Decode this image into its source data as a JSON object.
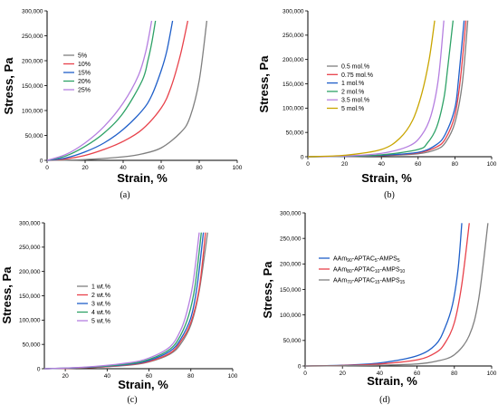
{
  "chart_data": [
    {
      "type": "line",
      "panel_label": "(a)",
      "xlabel": "Strain, %",
      "ylabel": "Stress, Pa",
      "xlim": [
        0,
        100
      ],
      "ylim": [
        0,
        300000
      ],
      "xticks": [
        0,
        20,
        40,
        60,
        80,
        100
      ],
      "yticks": [
        0,
        50000,
        100000,
        150000,
        200000,
        250000,
        300000
      ],
      "ytick_labels": [
        "0",
        "50,000",
        "100,000",
        "150,000",
        "200,000",
        "250,000",
        "300,000"
      ],
      "legend": "top-left",
      "series": [
        {
          "name": "5%",
          "color": "#7f7f7f",
          "x": [
            0,
            20,
            40,
            50,
            60,
            70,
            75,
            80,
            84
          ],
          "y": [
            0,
            1500,
            7000,
            13000,
            25000,
            55000,
            85000,
            160000,
            280000
          ]
        },
        {
          "name": "10%",
          "color": "#e8414a",
          "x": [
            0,
            10,
            20,
            30,
            40,
            50,
            60,
            65,
            70,
            74
          ],
          "y": [
            0,
            3000,
            10000,
            22000,
            38000,
            62000,
            105000,
            145000,
            210000,
            280000
          ]
        },
        {
          "name": "15%",
          "color": "#1f5fc9",
          "x": [
            0,
            10,
            20,
            30,
            40,
            50,
            55,
            60,
            63,
            66
          ],
          "y": [
            0,
            5000,
            17000,
            35000,
            62000,
            100000,
            130000,
            180000,
            220000,
            280000
          ]
        },
        {
          "name": "20%",
          "color": "#2ea267",
          "x": [
            0,
            10,
            20,
            30,
            40,
            50,
            53,
            55,
            57
          ],
          "y": [
            0,
            9000,
            28000,
            55000,
            95000,
            160000,
            200000,
            235000,
            280000
          ]
        },
        {
          "name": "25%",
          "color": "#b57fe0",
          "x": [
            0,
            10,
            20,
            30,
            40,
            48,
            52,
            55
          ],
          "y": [
            0,
            12000,
            35000,
            68000,
            115000,
            170000,
            220000,
            280000
          ]
        }
      ]
    },
    {
      "type": "line",
      "panel_label": "(b)",
      "xlabel": "Strain, %",
      "ylabel": "Stress, Pa",
      "xlim": [
        0,
        100
      ],
      "ylim": [
        0,
        300000
      ],
      "xticks": [
        0,
        20,
        40,
        60,
        80,
        100
      ],
      "yticks": [
        0,
        50000,
        100000,
        150000,
        200000,
        250000,
        300000
      ],
      "ytick_labels": [
        "0",
        "50,000",
        "100,000",
        "150,000",
        "200,000",
        "250,000",
        "300,000"
      ],
      "legend": "middle-left",
      "series": [
        {
          "name": "0.5 mol.%",
          "color": "#7f7f7f",
          "x": [
            0,
            20,
            40,
            60,
            70,
            75,
            80,
            84,
            87
          ],
          "y": [
            0,
            500,
            2000,
            6000,
            15000,
            30000,
            70000,
            150000,
            280000
          ]
        },
        {
          "name": "0.75 mol.%",
          "color": "#e8414a",
          "x": [
            0,
            20,
            40,
            60,
            70,
            75,
            80,
            83,
            86
          ],
          "y": [
            0,
            600,
            2500,
            8000,
            20000,
            38000,
            85000,
            160000,
            280000
          ]
        },
        {
          "name": "1 mol.%",
          "color": "#1f5fc9",
          "x": [
            0,
            20,
            40,
            60,
            70,
            75,
            80,
            82,
            85
          ],
          "y": [
            0,
            700,
            3000,
            9000,
            25000,
            48000,
            100000,
            160000,
            280000
          ]
        },
        {
          "name": "2 mol.%",
          "color": "#2ea267",
          "x": [
            0,
            20,
            40,
            60,
            65,
            70,
            74,
            76,
            79
          ],
          "y": [
            0,
            1000,
            4000,
            15000,
            28000,
            60000,
            120000,
            180000,
            280000
          ]
        },
        {
          "name": "3.5 mol.%",
          "color": "#b57fe0",
          "x": [
            0,
            20,
            40,
            55,
            62,
            67,
            71,
            74
          ],
          "y": [
            0,
            1500,
            7000,
            22000,
            45000,
            85000,
            160000,
            280000
          ]
        },
        {
          "name": "5 mol.%",
          "color": "#c9a500",
          "x": [
            0,
            20,
            40,
            50,
            57,
            62,
            66,
            69
          ],
          "y": [
            0,
            3000,
            15000,
            38000,
            75000,
            130000,
            200000,
            280000
          ]
        }
      ]
    },
    {
      "type": "line",
      "panel_label": "(c)",
      "xlabel": "Strain, %",
      "ylabel": "Stress, Pa",
      "xlim": [
        10,
        100
      ],
      "ylim": [
        0,
        300000
      ],
      "xticks": [
        20,
        40,
        60,
        80,
        100
      ],
      "yticks": [
        0,
        50000,
        100000,
        150000,
        200000,
        250000,
        300000
      ],
      "ytick_labels": [
        "0",
        "50,000",
        "100,000",
        "150,000",
        "200,000",
        "250,000",
        "300,000"
      ],
      "legend": "middle-left",
      "series": [
        {
          "name": "1 wt.%",
          "color": "#7f7f7f",
          "x": [
            10,
            30,
            50,
            60,
            70,
            75,
            80,
            84,
            88
          ],
          "y": [
            0,
            2000,
            7000,
            14000,
            30000,
            50000,
            90000,
            160000,
            280000
          ]
        },
        {
          "name": "2 wt.%",
          "color": "#e8414a",
          "x": [
            10,
            30,
            50,
            60,
            70,
            75,
            80,
            84,
            87
          ],
          "y": [
            0,
            2000,
            8000,
            15000,
            32000,
            55000,
            95000,
            165000,
            280000
          ]
        },
        {
          "name": "3 wt.%",
          "color": "#1f5fc9",
          "x": [
            10,
            30,
            50,
            60,
            70,
            75,
            80,
            83,
            86
          ],
          "y": [
            0,
            2500,
            9000,
            17000,
            36000,
            60000,
            105000,
            170000,
            280000
          ]
        },
        {
          "name": "4 wt.%",
          "color": "#2ea267",
          "x": [
            10,
            30,
            50,
            60,
            70,
            75,
            79,
            82,
            85
          ],
          "y": [
            0,
            3000,
            10000,
            19000,
            40000,
            68000,
            110000,
            170000,
            280000
          ]
        },
        {
          "name": "5 wt.%",
          "color": "#b57fe0",
          "x": [
            10,
            30,
            50,
            60,
            70,
            75,
            78,
            81,
            84
          ],
          "y": [
            0,
            3500,
            12000,
            22000,
            45000,
            78000,
            115000,
            175000,
            280000
          ]
        }
      ]
    },
    {
      "type": "line",
      "panel_label": "(d)",
      "xlabel": "Strain, %",
      "ylabel": "Stress, Pa",
      "xlim": [
        0,
        100
      ],
      "ylim": [
        0,
        300000
      ],
      "xticks": [
        0,
        20,
        40,
        60,
        80,
        100
      ],
      "yticks": [
        0,
        50000,
        100000,
        150000,
        200000,
        250000,
        300000
      ],
      "ytick_labels": [
        "0",
        "50,000",
        "100,000",
        "150,000",
        "200,000",
        "250,000",
        "300,000"
      ],
      "legend": "middle-left",
      "series": [
        {
          "name": "AAm90-APTAC5-AMPS5",
          "label_parts": [
            [
              "AAm",
              ""
            ],
            [
              "90",
              "sub"
            ],
            [
              "-APTAC",
              ""
            ],
            [
              "5",
              "sub"
            ],
            [
              "-AMPS",
              ""
            ],
            [
              "5",
              "sub"
            ]
          ],
          "color": "#1f5fc9",
          "x": [
            0,
            20,
            40,
            60,
            70,
            75,
            79,
            82,
            84
          ],
          "y": [
            0,
            1500,
            6000,
            20000,
            42000,
            75000,
            120000,
            190000,
            280000
          ]
        },
        {
          "name": "AAm80-APTAC10-AMPS10",
          "label_parts": [
            [
              "AAm",
              ""
            ],
            [
              "80",
              "sub"
            ],
            [
              "-APTAC",
              ""
            ],
            [
              "10",
              "sub"
            ],
            [
              "-AMPS",
              ""
            ],
            [
              "10",
              "sub"
            ]
          ],
          "color": "#e8414a",
          "x": [
            0,
            20,
            40,
            60,
            70,
            75,
            80,
            84,
            88
          ],
          "y": [
            0,
            1000,
            4000,
            12000,
            26000,
            45000,
            85000,
            160000,
            280000
          ]
        },
        {
          "name": "AAm70-APTAC15-AMPS15",
          "label_parts": [
            [
              "AAm",
              ""
            ],
            [
              "70",
              "sub"
            ],
            [
              "-APTAC",
              ""
            ],
            [
              "15",
              "sub"
            ],
            [
              "-AMPS",
              ""
            ],
            [
              "15",
              "sub"
            ]
          ],
          "color": "#7f7f7f",
          "x": [
            0,
            20,
            40,
            60,
            70,
            80,
            88,
            93,
            98
          ],
          "y": [
            0,
            500,
            1500,
            4000,
            9000,
            22000,
            60000,
            130000,
            280000
          ]
        }
      ]
    }
  ]
}
